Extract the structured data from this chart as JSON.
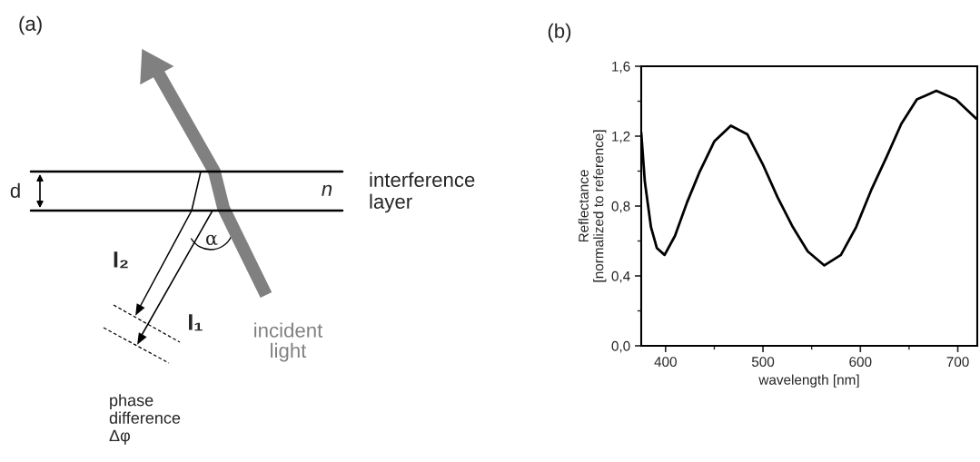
{
  "chart_data": [
    {
      "type": "other",
      "title": "(a)",
      "annotations": [
        "d",
        "n",
        "interference\nlayer",
        "α",
        "I₂",
        "I₁",
        "incident\nlight",
        "phase\ndifference\nΔφ"
      ]
    },
    {
      "type": "line",
      "title": "(b)",
      "xlabel": "wavelength [nm]",
      "ylabel": "Reflectance\n[normalized to reference]",
      "x": [
        375,
        378.7,
        385,
        391,
        399,
        409.7,
        422,
        434.5,
        450,
        467,
        484,
        499.7,
        515,
        530.6,
        546,
        563,
        580,
        595.7,
        611,
        626.8,
        642,
        658,
        678,
        698,
        719
      ],
      "series": [
        {
          "color": "#000000",
          "values": [
            1.22,
            0.94,
            0.68,
            0.56,
            0.52,
            0.63,
            0.82,
            0.99,
            1.17,
            1.26,
            1.21,
            1.04,
            0.85,
            0.68,
            0.54,
            0.46,
            0.52,
            0.68,
            0.89,
            1.08,
            1.27,
            1.41,
            1.46,
            1.41,
            1.3
          ]
        }
      ],
      "xlim": [
        375,
        720
      ],
      "xticks": [
        400,
        500,
        600,
        700
      ],
      "ylim": [
        0,
        1.6
      ],
      "yticks": [
        {
          "value": 0,
          "label": "0,0"
        },
        {
          "value": 0.4,
          "label": "0,4"
        },
        {
          "value": 0.8,
          "label": "0,8"
        },
        {
          "value": 1.2,
          "label": "1,2"
        },
        {
          "value": 1.6,
          "label": "1,6"
        }
      ],
      "grid": false,
      "marker": "none",
      "line_style": "solid"
    }
  ]
}
